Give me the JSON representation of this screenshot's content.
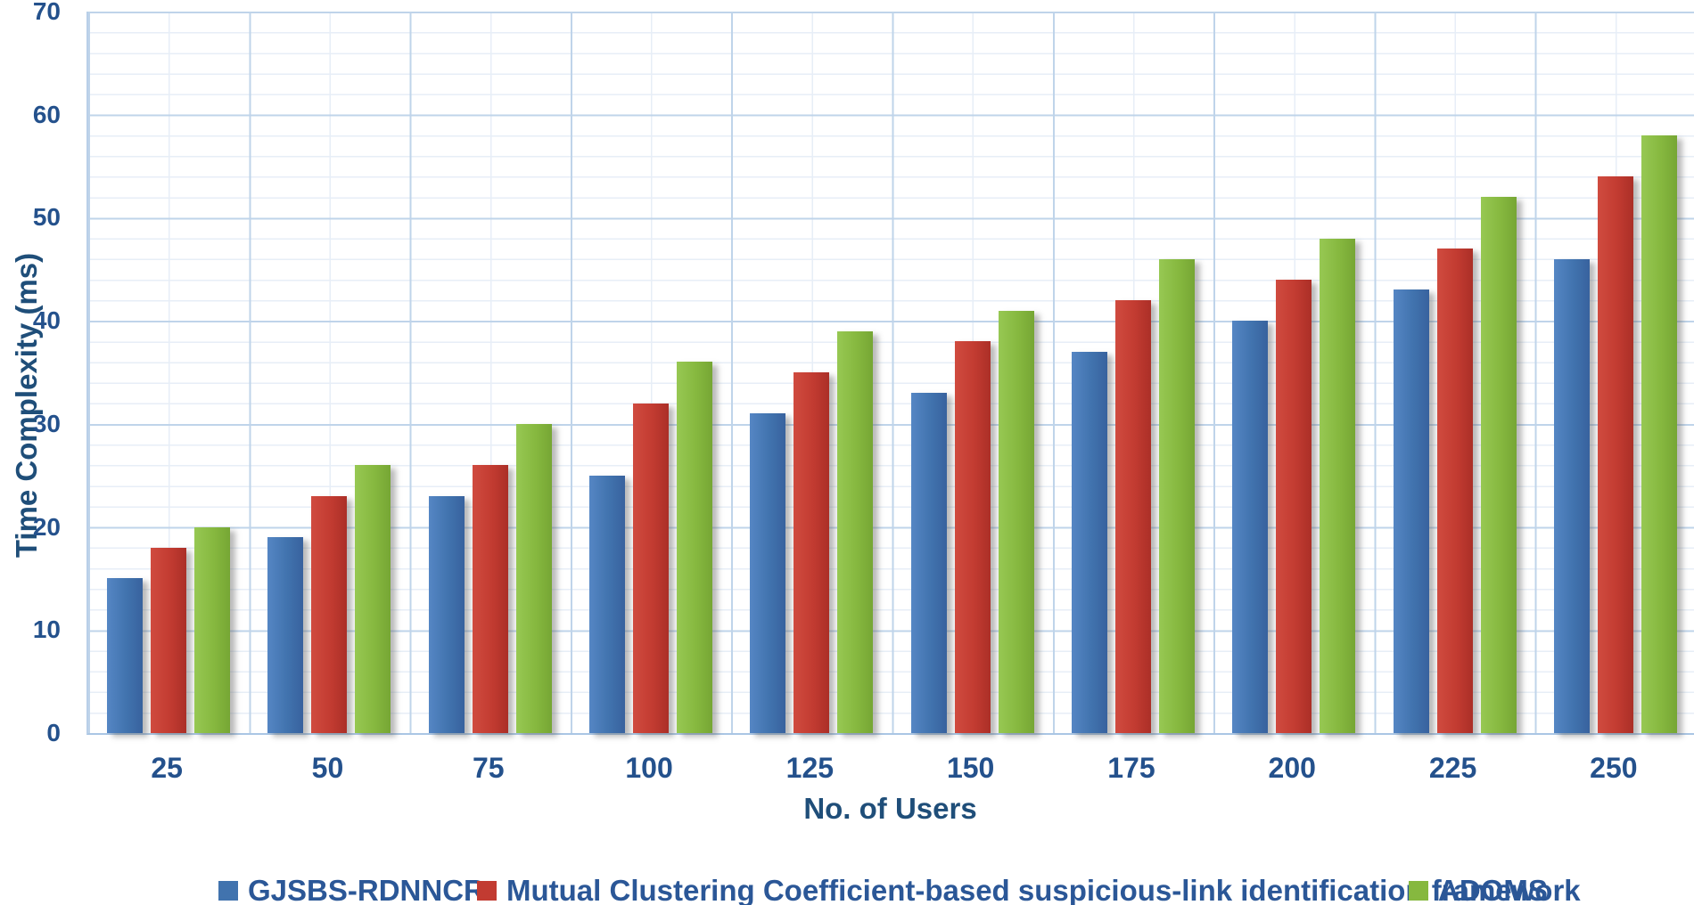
{
  "chart_data": {
    "type": "bar",
    "title": "",
    "xlabel": "No. of Users",
    "ylabel": "Time Complexity (ms)",
    "categories": [
      "25",
      "50",
      "75",
      "100",
      "125",
      "150",
      "175",
      "200",
      "225",
      "250"
    ],
    "series": [
      {
        "name": "GJSBS-RDNNCR",
        "color": "#4173ae",
        "values": [
          15,
          19,
          23,
          25,
          31,
          33,
          37,
          40,
          43,
          46
        ]
      },
      {
        "name": "Mutual Clustering Coefficient-based suspicious-link identification framework",
        "color": "#c23b31",
        "values": [
          18,
          23,
          26,
          32,
          35,
          38,
          42,
          44,
          47,
          54
        ]
      },
      {
        "name": "ADOMS",
        "color": "#86b83f",
        "values": [
          20,
          26,
          30,
          36,
          39,
          41,
          46,
          48,
          52,
          58
        ]
      }
    ],
    "ylim": [
      0,
      70
    ],
    "y_major_ticks": [
      0,
      10,
      20,
      30,
      40,
      50,
      60,
      70
    ],
    "y_minor_step": 2,
    "grid": "major and minor, horizontal and vertical, light blue",
    "legend_position": "bottom",
    "colors": {
      "axis_title_text": "#1f4e79",
      "tick_text": "#24518c",
      "legend_text": "#2b5797",
      "major_gridline": "#bfd4ea",
      "minor_gridline": "#e7eef7",
      "background": "#ffffff"
    }
  }
}
